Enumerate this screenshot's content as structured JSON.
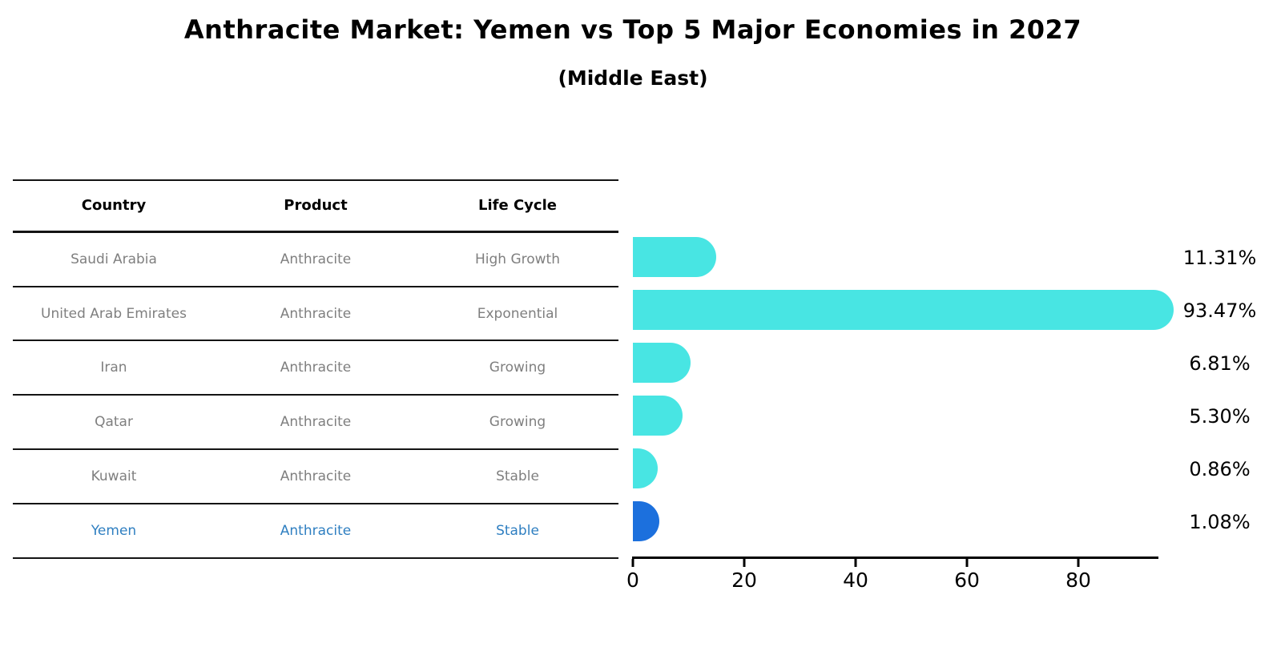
{
  "title": "Anthracite Market: Yemen vs Top 5 Major Economies in 2027",
  "subtitle": "(Middle East)",
  "table": {
    "headers": [
      "Country",
      "Product",
      "Life Cycle"
    ],
    "rows": [
      {
        "country": "Saudi Arabia",
        "product": "Anthracite",
        "life_cycle": "High Growth",
        "highlight": false
      },
      {
        "country": "United Arab Emirates",
        "product": "Anthracite",
        "life_cycle": "Exponential",
        "highlight": false
      },
      {
        "country": "Iran",
        "product": "Anthracite",
        "life_cycle": "Growing",
        "highlight": false
      },
      {
        "country": "Qatar",
        "product": "Anthracite",
        "life_cycle": "Growing",
        "highlight": false
      },
      {
        "country": "Kuwait",
        "product": "Anthracite",
        "life_cycle": "Stable",
        "highlight": false
      },
      {
        "country": "Yemen",
        "product": "Anthracite",
        "life_cycle": "Stable",
        "highlight": true
      }
    ]
  },
  "chart_data": {
    "type": "bar",
    "orientation": "horizontal",
    "title": "Anthracite Market: Yemen vs Top 5 Major Economies in 2027",
    "subtitle": "(Middle East)",
    "categories": [
      "Saudi Arabia",
      "United Arab Emirates",
      "Iran",
      "Qatar",
      "Kuwait",
      "Yemen"
    ],
    "values": [
      11.31,
      93.47,
      6.81,
      5.3,
      0.86,
      1.08
    ],
    "value_labels": [
      "11.31%",
      "93.47%",
      "6.81%",
      "5.30%",
      "0.86%",
      "1.08%"
    ],
    "xlabel": "",
    "ylabel": "",
    "x_ticks": [
      0,
      20,
      40,
      60,
      80
    ],
    "xlim": [
      0,
      94
    ],
    "grid": false,
    "legend": false,
    "bar_color": "#48e5e3",
    "highlight_color": "#1c70dd",
    "highlight_index": 5
  },
  "colors": {
    "background": "#ffffff",
    "table_text": "#7f7f7f",
    "header_text": "#000000",
    "highlight_text": "#2f7fc1",
    "axis": "#000000"
  }
}
